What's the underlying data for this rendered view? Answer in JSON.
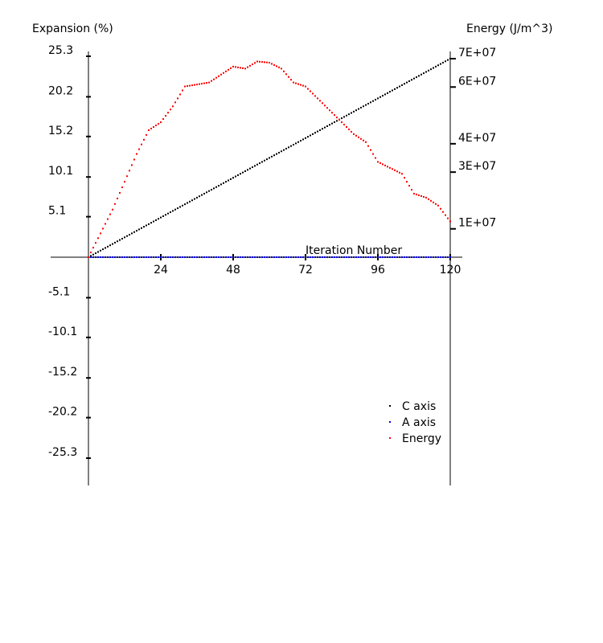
{
  "chart_data": {
    "type": "scatter",
    "left_axis_label": "Expansion (%)",
    "right_axis_label": "Energy (J/m^3)",
    "xlabel": "Iteration Number",
    "xlim": [
      0,
      120
    ],
    "ylim_left": [
      -30.4,
      25.3
    ],
    "ylim_right": [
      0,
      70000000
    ],
    "x_ticks": [
      "24",
      "48",
      "72",
      "96",
      "120"
    ],
    "y_ticks_left": [
      "25.3",
      "20.2",
      "15.2",
      "10.1",
      "5.1",
      "-5.1",
      "-10.1",
      "-15.2",
      "-20.2",
      "-25.3"
    ],
    "y_ticks_right": [
      "7E+07",
      "6E+07",
      "4E+07",
      "3E+07",
      "1E+07"
    ],
    "legend_placement": "lower-right",
    "grid": false,
    "series": [
      {
        "name": "C axis",
        "axis": "left",
        "color": "#000000",
        "x": [
          0,
          120
        ],
        "y": [
          0,
          25.0
        ]
      },
      {
        "name": "A axis",
        "axis": "left",
        "color": "#0000cc",
        "x": [
          0,
          120
        ],
        "y": [
          0,
          0
        ]
      },
      {
        "name": "Energy",
        "axis": "right",
        "color": "#ff0000",
        "x": [
          0,
          4,
          8,
          12,
          16,
          20,
          24,
          28,
          32,
          36,
          40,
          44,
          48,
          52,
          56,
          60,
          64,
          68,
          72,
          76,
          80,
          84,
          88,
          92,
          96,
          100,
          104,
          108,
          112,
          116,
          120
        ],
        "y": [
          0,
          8400000,
          16800000,
          26600000,
          36400000,
          44800000,
          47600000,
          53200000,
          60200000,
          60900000,
          61600000,
          64400000,
          67200000,
          66500000,
          69000000,
          68600000,
          66500000,
          61600000,
          60200000,
          56000000,
          51800000,
          47600000,
          43400000,
          40600000,
          33600000,
          31500000,
          29400000,
          22400000,
          21000000,
          18200000,
          12600000
        ]
      }
    ]
  }
}
